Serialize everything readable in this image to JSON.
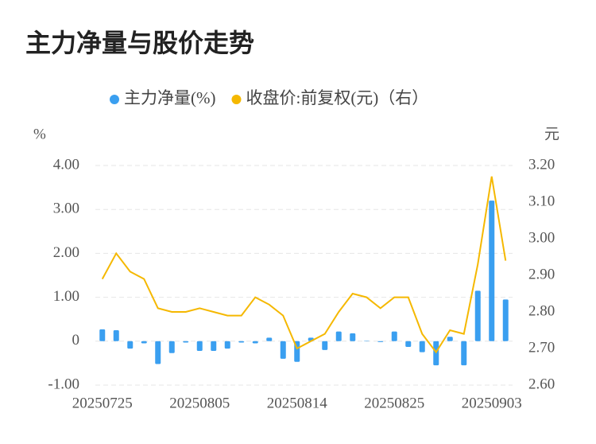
{
  "chart_data": {
    "type": "bar-line",
    "title": "主力净量与股价走势",
    "y_label": "%",
    "y2_label": "元",
    "categories": [
      "20250725",
      null,
      null,
      null,
      null,
      null,
      null,
      "20250805",
      null,
      null,
      null,
      null,
      null,
      null,
      "20250814",
      null,
      null,
      null,
      null,
      null,
      null,
      "20250825",
      null,
      null,
      null,
      null,
      null,
      null,
      "20250903",
      null
    ],
    "series": [
      {
        "name": "主力净量(%)",
        "color": "#3a9ff0",
        "kind": "bar",
        "axis": "y",
        "values": [
          0.27,
          0.25,
          -0.17,
          -0.05,
          -0.52,
          -0.27,
          -0.03,
          -0.22,
          -0.22,
          -0.17,
          -0.03,
          -0.05,
          0.08,
          -0.4,
          -0.47,
          0.08,
          -0.2,
          0.22,
          0.18,
          0.01,
          -0.02,
          0.22,
          -0.13,
          -0.25,
          -0.55,
          0.1,
          -0.55,
          1.15,
          3.2,
          0.95
        ]
      },
      {
        "name": "收盘价:前复权(元)（右）",
        "color": "#f5b800",
        "kind": "line",
        "axis": "y2",
        "values": [
          2.89,
          2.96,
          2.91,
          2.89,
          2.81,
          2.8,
          2.8,
          2.81,
          2.8,
          2.79,
          2.79,
          2.84,
          2.82,
          2.79,
          2.7,
          2.72,
          2.74,
          2.8,
          2.85,
          2.84,
          2.81,
          2.84,
          2.84,
          2.74,
          2.69,
          2.75,
          2.74,
          2.93,
          3.17,
          2.94
        ]
      }
    ],
    "ylim": [
      -1,
      4
    ],
    "yticks": [
      {
        "value": -1,
        "label": "-1.00"
      },
      0,
      {
        "value": 1,
        "label": "1.00"
      },
      {
        "value": 2,
        "label": "2.00"
      },
      {
        "value": 3,
        "label": "3.00"
      },
      {
        "value": 4,
        "label": "4.00"
      }
    ],
    "y2lim": [
      2.6,
      3.2
    ],
    "y2ticks": [
      {
        "value": 2.6,
        "label": "2.60"
      },
      {
        "value": 2.7,
        "label": "2.70"
      },
      {
        "value": 2.8,
        "label": "2.80"
      },
      {
        "value": 2.9,
        "label": "2.90"
      },
      {
        "value": 3.0,
        "label": "3.00"
      },
      {
        "value": 3.1,
        "label": "3.10"
      },
      {
        "value": 3.2,
        "label": "3.20"
      }
    ],
    "grid": true,
    "legend": "top"
  }
}
